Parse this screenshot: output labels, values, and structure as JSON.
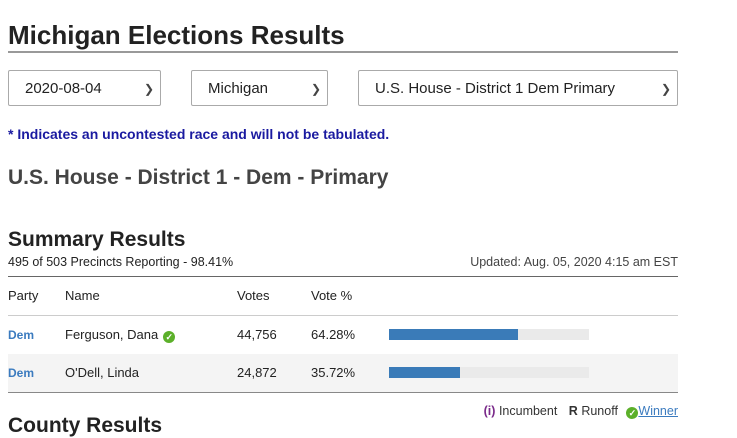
{
  "page": {
    "title": "Michigan Elections Results"
  },
  "filters": {
    "date": "2020-08-04",
    "state": "Michigan",
    "race": "U.S. House - District 1 Dem Primary"
  },
  "notice": "* Indicates an uncontested race and will not be tabulated.",
  "race_title": "U.S. House - District 1 - Dem - Primary",
  "summary": {
    "heading": "Summary Results",
    "precincts": "495 of 503 Precincts Reporting - 98.41%",
    "updated": "Updated: Aug. 05, 2020 4:15 am EST"
  },
  "table": {
    "headers": {
      "party": "Party",
      "name": "Name",
      "votes": "Votes",
      "pct": "Vote %"
    },
    "rows": [
      {
        "party": "Dem",
        "name": "Ferguson, Dana",
        "votes": "44,756",
        "pct": "64.28%",
        "share": 0.6428,
        "winner": true
      },
      {
        "party": "Dem",
        "name": "O'Dell, Linda",
        "votes": "24,872",
        "pct": "35.72%",
        "share": 0.3572,
        "winner": false
      }
    ]
  },
  "legend": {
    "incumbent_mark": "(i)",
    "incumbent_label": "Incumbent",
    "runoff_mark": "R",
    "runoff_label": "Runoff",
    "winner_label": "Winner"
  },
  "county_heading": "County Results",
  "colors": {
    "bar": "#3a7bb8",
    "party_link": "#3b7bbf",
    "winner_check": "#5cb02a",
    "notice": "#1a1aa0"
  }
}
